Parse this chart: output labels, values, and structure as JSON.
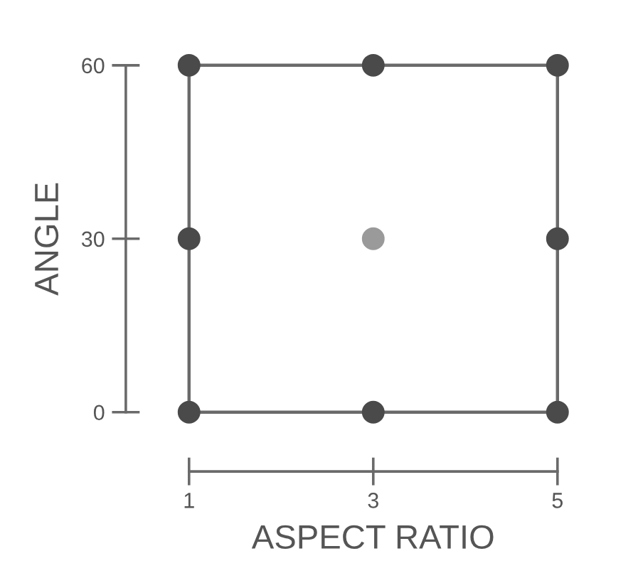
{
  "chart_data": {
    "type": "scatter",
    "xlabel": "ASPECT RATIO",
    "ylabel": "ANGLE",
    "xlim": [
      1,
      5
    ],
    "ylim": [
      0,
      60
    ],
    "xticks": [
      1,
      3,
      5
    ],
    "yticks": [
      0,
      30,
      60
    ],
    "grid": false,
    "marker": "circle",
    "series": [
      {
        "type": "scatter",
        "color": "#4a4a4a",
        "x": [
          1,
          3,
          5,
          1,
          5,
          1,
          3,
          5
        ],
        "values": [
          0,
          0,
          0,
          30,
          30,
          60,
          60,
          60
        ]
      },
      {
        "color": "#9a9a9a",
        "x": [
          3
        ],
        "values": [
          30
        ]
      }
    ]
  }
}
